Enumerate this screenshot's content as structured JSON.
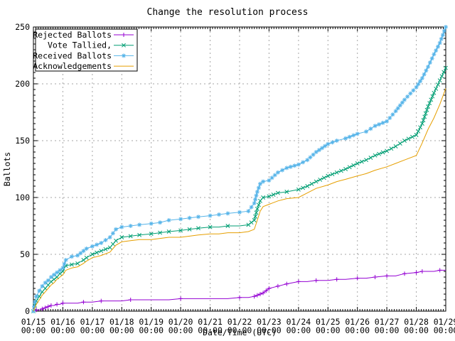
{
  "chart_data": {
    "type": "line",
    "title": "Change the resolution process",
    "xlabel": "Date/Time (UTC)",
    "ylabel": "Ballots",
    "ylim": [
      0,
      250
    ],
    "y_ticks": [
      0,
      50,
      100,
      150,
      200,
      250
    ],
    "x_days_range": [
      0,
      14
    ],
    "x_tick_labels": [
      {
        "day": "01/15",
        "time": "00:00"
      },
      {
        "day": "01/16",
        "time": "00:00"
      },
      {
        "day": "01/17",
        "time": "00:00"
      },
      {
        "day": "01/18",
        "time": "00:00"
      },
      {
        "day": "01/19",
        "time": "00:00"
      },
      {
        "day": "01/20",
        "time": "00:00"
      },
      {
        "day": "01/21",
        "time": "00:00"
      },
      {
        "day": "01/22",
        "time": "00:00"
      },
      {
        "day": "01/23",
        "time": "00:00"
      },
      {
        "day": "01/24",
        "time": "00:00"
      },
      {
        "day": "01/25",
        "time": "00:00"
      },
      {
        "day": "01/26",
        "time": "00:00"
      },
      {
        "day": "01/27",
        "time": "00:00"
      },
      {
        "day": "01/28",
        "time": "00:00"
      },
      {
        "day": "01/29",
        "time": "00:00"
      }
    ],
    "grid": true,
    "legend_position": "top-left",
    "background_color": "#ffffff",
    "border_color": "#000000",
    "grid_color": "#a6a6a6",
    "x_common_days": [
      0,
      0.05,
      0.1,
      0.2,
      0.3,
      0.4,
      0.5,
      0.6,
      0.7,
      0.8,
      0.9,
      1.0,
      1.1,
      1.3,
      1.5,
      1.7,
      1.8,
      2.0,
      2.3,
      2.6,
      2.8,
      3.0,
      3.3,
      3.6,
      4.0,
      4.3,
      4.6,
      5.0,
      5.3,
      5.6,
      6.0,
      6.3,
      6.6,
      7.0,
      7.3,
      7.5,
      7.6,
      7.7,
      7.8,
      8.0,
      8.3,
      8.6,
      9.0,
      9.3,
      9.6,
      10.0,
      10.3,
      10.6,
      11.0,
      11.3,
      11.6,
      12.0,
      12.3,
      12.6,
      13.0,
      13.2,
      13.4,
      13.6,
      13.8,
      14.0
    ],
    "series": [
      {
        "name": "Rejected Ballots",
        "color": "#9400d3",
        "marker": "plus-marker",
        "values": [
          0,
          0,
          1,
          1,
          2,
          3,
          4,
          5,
          5,
          6,
          6,
          7,
          7,
          7,
          7,
          8,
          8,
          8,
          9,
          9,
          9,
          9,
          10,
          10,
          10,
          10,
          10,
          11,
          11,
          11,
          11,
          11,
          11,
          12,
          12,
          13,
          14,
          15,
          16,
          20,
          22,
          24,
          26,
          26,
          27,
          27,
          28,
          28,
          29,
          29,
          30,
          31,
          31,
          33,
          34,
          35,
          35,
          35,
          36,
          36
        ]
      },
      {
        "name": "Vote Tallied,",
        "color": "#009e73",
        "marker": "cross-marker",
        "values": [
          0,
          5,
          9,
          13,
          17,
          20,
          23,
          26,
          28,
          30,
          33,
          35,
          40,
          41,
          42,
          45,
          47,
          50,
          53,
          56,
          62,
          65,
          66,
          67,
          68,
          69,
          70,
          71,
          72,
          73,
          74,
          74,
          75,
          75,
          76,
          80,
          90,
          97,
          100,
          101,
          104,
          105,
          107,
          110,
          114,
          119,
          122,
          125,
          130,
          133,
          137,
          141,
          145,
          150,
          155,
          165,
          180,
          192,
          203,
          214
        ]
      },
      {
        "name": "Received Ballots",
        "color": "#56b4e9",
        "marker": "star-marker",
        "values": [
          0,
          8,
          13,
          18,
          22,
          25,
          27,
          30,
          32,
          34,
          36,
          38,
          45,
          48,
          49,
          53,
          55,
          57,
          60,
          65,
          72,
          74,
          75,
          76,
          77,
          78,
          80,
          81,
          82,
          83,
          84,
          85,
          86,
          87,
          88,
          95,
          105,
          112,
          114,
          115,
          122,
          126,
          129,
          133,
          140,
          147,
          150,
          152,
          156,
          158,
          163,
          167,
          176,
          186,
          197,
          205,
          215,
          226,
          236,
          250
        ]
      },
      {
        "name": "Acknowledgements",
        "color": "#e69f00",
        "marker": "none",
        "values": [
          0,
          3,
          6,
          10,
          14,
          17,
          20,
          23,
          25,
          28,
          30,
          32,
          36,
          38,
          39,
          42,
          44,
          47,
          49,
          52,
          58,
          61,
          62,
          63,
          63,
          64,
          65,
          65,
          66,
          67,
          68,
          68,
          69,
          69,
          70,
          72,
          80,
          88,
          92,
          94,
          97,
          99,
          100,
          104,
          108,
          111,
          114,
          116,
          119,
          121,
          124,
          127,
          130,
          133,
          137,
          148,
          160,
          170,
          182,
          196
        ]
      }
    ]
  }
}
